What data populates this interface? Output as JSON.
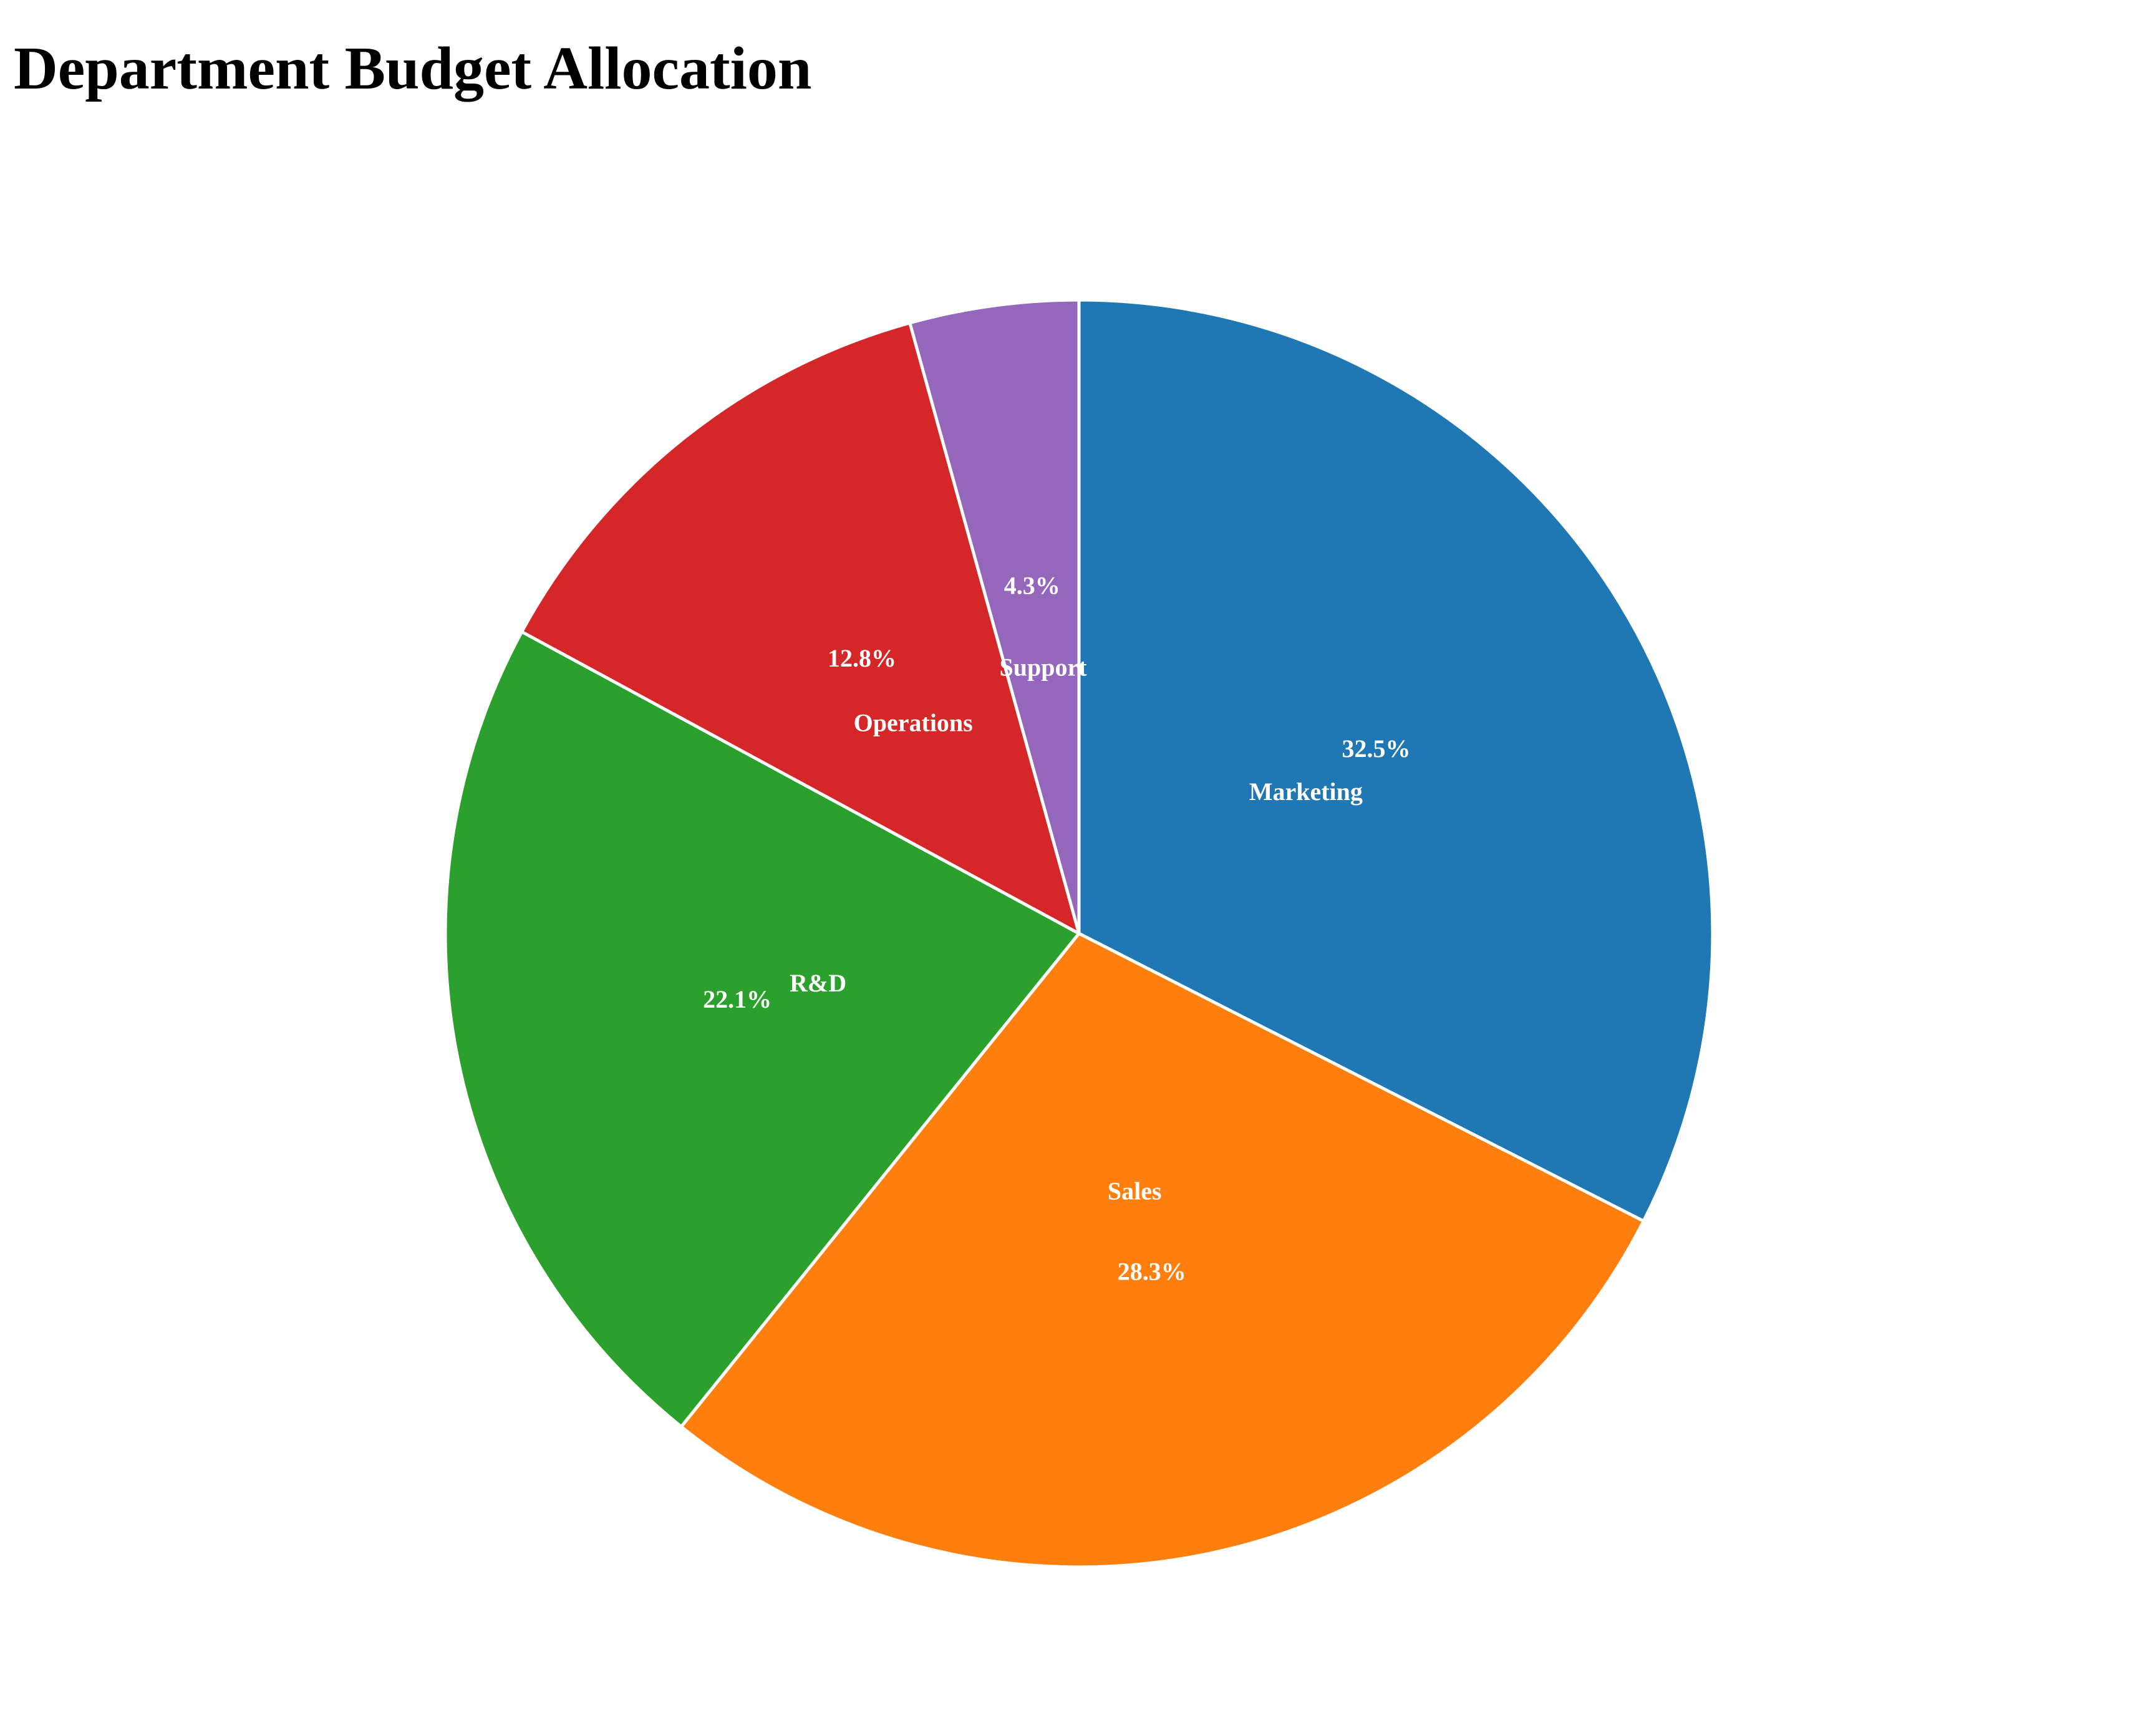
{
  "chart_data": {
    "type": "pie",
    "title": "Department Budget Allocation",
    "start_angle_degrees": 90,
    "direction": "clockwise",
    "slice_border_color": "#ffffff",
    "slices": [
      {
        "label": "Marketing",
        "value": 32.5,
        "display": "32.5%",
        "color": "#1f77b4"
      },
      {
        "label": "Sales",
        "value": 28.3,
        "display": "28.3%",
        "color": "#ff7f0e"
      },
      {
        "label": "R&D",
        "value": 22.1,
        "display": "22.1%",
        "color": "#2ca02c"
      },
      {
        "label": "Operations",
        "value": 12.8,
        "display": "12.8%",
        "color": "#d62728"
      },
      {
        "label": "Support",
        "value": 4.3,
        "display": "4.3%",
        "color": "#9467bd"
      }
    ]
  }
}
